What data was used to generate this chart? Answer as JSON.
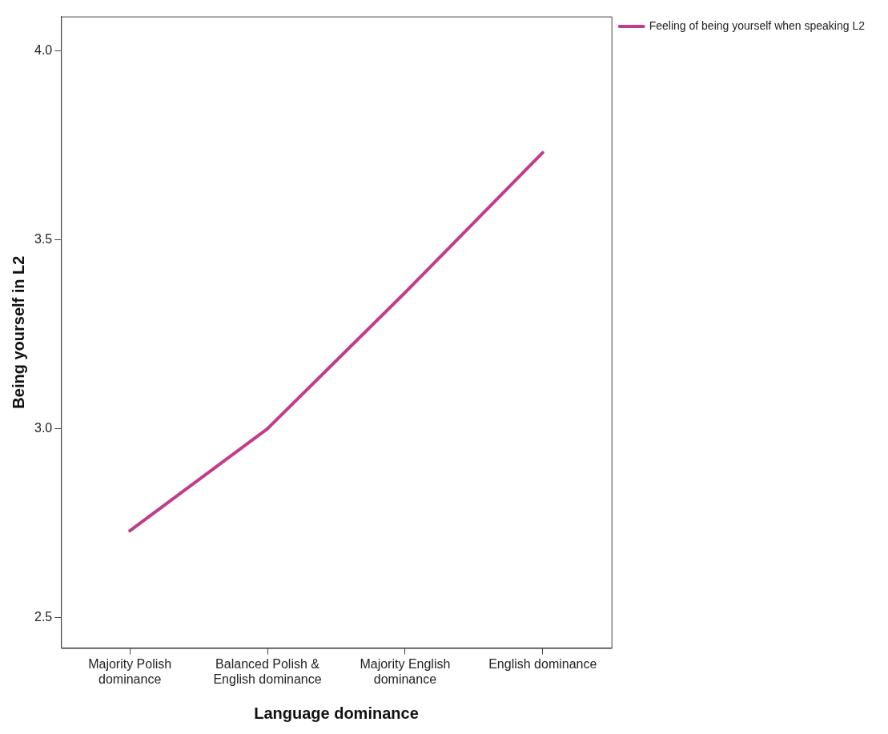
{
  "chart_data": {
    "type": "line",
    "xlabel": "Language dominance",
    "ylabel": "Being yourself in L2",
    "categories": [
      "Majority Polish dominance",
      "Balanced Polish & English dominance",
      "Majority English dominance",
      "English dominance"
    ],
    "series": [
      {
        "name": "Feeling of being yourself when speaking L2",
        "color": "#c13c8b",
        "values": [
          2.73,
          3.0,
          3.36,
          3.73
        ]
      }
    ],
    "ylim": [
      2.42,
      4.09
    ],
    "yticks": [
      {
        "value": 2.5,
        "label": "2.5"
      },
      {
        "value": 3.0,
        "label": "3.0"
      },
      {
        "value": 3.5,
        "label": "3.5"
      },
      {
        "value": 4.0,
        "label": "4.0"
      }
    ],
    "grid": false,
    "legend": "top right",
    "marker": "none"
  }
}
